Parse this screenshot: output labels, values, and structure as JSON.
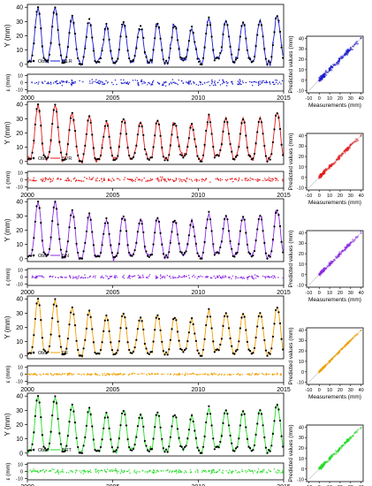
{
  "chart_data": {
    "type": "line",
    "description_free": true,
    "x_axis": {
      "ticks": [
        2000,
        2005,
        2010,
        2015
      ],
      "range": [
        2000,
        2015
      ]
    },
    "ts_y": {
      "label": "Y (mm)",
      "ticks": [
        0,
        10,
        20,
        30,
        40
      ],
      "range": [
        -2,
        42
      ]
    },
    "res_y": {
      "label": "ε (mm)",
      "ticks": [
        -10,
        0,
        10
      ],
      "range": [
        -12,
        12
      ]
    },
    "scatter": {
      "xlabel": "Measurements (mm)",
      "ylabel": "Predicted values (mm)",
      "x_ticks": [
        -10,
        0,
        10,
        20,
        30,
        40
      ],
      "y_ticks": [
        -10,
        0,
        10,
        20,
        30,
        40
      ],
      "range": [
        -12,
        42
      ]
    },
    "seasonal_pattern": {
      "start_year": 2000,
      "peaks": [
        40,
        40,
        33,
        31,
        28,
        30,
        27,
        29,
        28,
        25,
        32,
        30,
        30,
        31,
        35
      ],
      "troughs": [
        1,
        2,
        1,
        0,
        1,
        1,
        2,
        1,
        1,
        3,
        1,
        4,
        1,
        2,
        1
      ]
    },
    "panels": [
      {
        "model": "MLR",
        "obs_label": "Obs",
        "color": "#1a1acc",
        "error_spread": 4
      },
      {
        "model": "SVR",
        "obs_label": "Obs",
        "color": "#e31a1c",
        "error_spread": 3.5
      },
      {
        "model": "NN",
        "obs_label": "Obs",
        "color": "#8a2be2",
        "error_spread": 3
      },
      {
        "model": "RF",
        "obs_label": "Obs",
        "color": "#f0a000",
        "error_spread": 1.5
      },
      {
        "model": "BRT",
        "obs_label": "Obs",
        "color": "#22dd22",
        "error_spread": 3
      }
    ]
  }
}
